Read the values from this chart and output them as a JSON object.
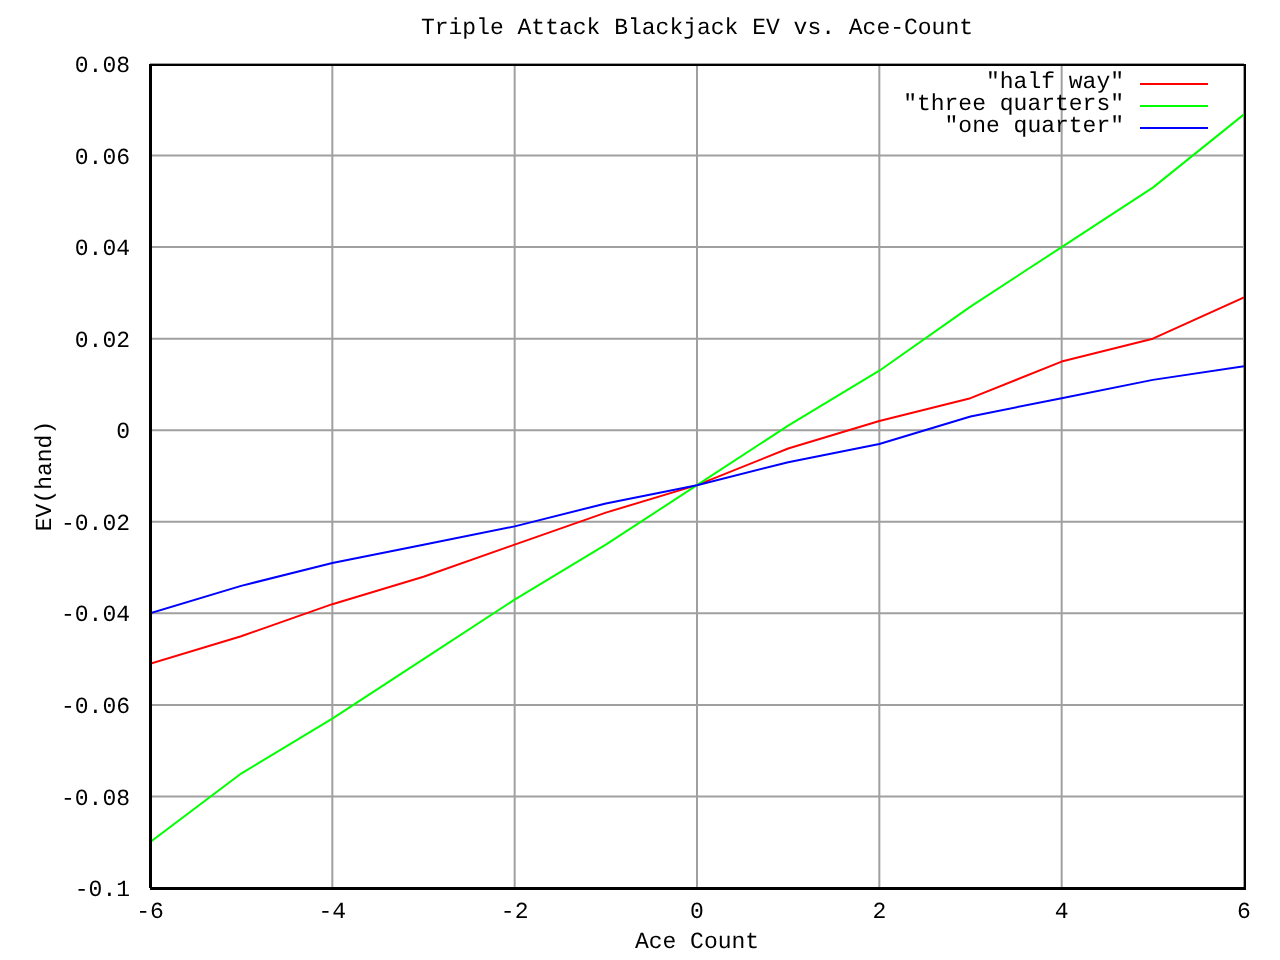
{
  "chart_data": {
    "type": "line",
    "title": "Triple Attack Blackjack EV vs. Ace-Count",
    "xlabel": "Ace Count",
    "ylabel": "EV(hand)",
    "x": [
      -6,
      -5,
      -4,
      -3,
      -2,
      -1,
      0,
      1,
      2,
      3,
      4,
      5,
      6
    ],
    "series": [
      {
        "name": "\"half way\"",
        "color": "#ff0000",
        "values": [
          -0.051,
          -0.045,
          -0.038,
          -0.032,
          -0.025,
          -0.018,
          -0.012,
          -0.004,
          0.002,
          0.007,
          0.015,
          0.02,
          0.029
        ]
      },
      {
        "name": "\"three quarters\"",
        "color": "#00ff00",
        "values": [
          -0.09,
          -0.075,
          -0.063,
          -0.05,
          -0.037,
          -0.025,
          -0.012,
          0.001,
          0.013,
          0.027,
          0.04,
          0.053,
          0.069
        ]
      },
      {
        "name": "\"one quarter\"",
        "color": "#0000ff",
        "values": [
          -0.04,
          -0.034,
          -0.029,
          -0.025,
          -0.021,
          -0.016,
          -0.012,
          -0.007,
          -0.003,
          0.003,
          0.007,
          0.011,
          0.014
        ]
      }
    ],
    "xlim": [
      -6,
      6
    ],
    "xticks": [
      -6,
      -4,
      -2,
      0,
      2,
      4,
      6
    ],
    "ylim": [
      -0.1,
      0.08
    ],
    "yticks": [
      -0.1,
      -0.08,
      -0.06,
      -0.04,
      -0.02,
      0,
      0.02,
      0.04,
      0.06,
      0.08
    ],
    "grid": true,
    "legend": "top right"
  }
}
